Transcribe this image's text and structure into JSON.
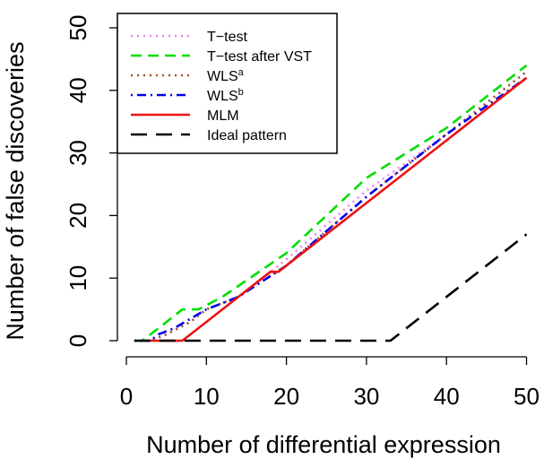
{
  "chart_data": {
    "type": "line",
    "xlabel": "Number of differential expression",
    "ylabel": "Number of false discoveries",
    "xlim": [
      0,
      50
    ],
    "ylim": [
      0,
      50
    ],
    "xticks": [
      0,
      10,
      20,
      30,
      40,
      50
    ],
    "yticks": [
      0,
      10,
      20,
      30,
      40,
      50
    ],
    "grid": false,
    "legend_position": "top-left",
    "series": [
      {
        "name": "T−test",
        "color": "#ee82ee",
        "dash": "dotted",
        "x": [
          1,
          3,
          5,
          8,
          10,
          14,
          20,
          30,
          40,
          50
        ],
        "y": [
          0,
          0,
          1,
          3,
          5,
          7,
          13,
          24,
          33,
          43
        ]
      },
      {
        "name": "T−test after VST",
        "color": "#00dd00",
        "dash": "dashed",
        "x": [
          1,
          2,
          5,
          7,
          9,
          12,
          20,
          30,
          40,
          50
        ],
        "y": [
          0,
          0,
          3,
          5,
          5,
          7,
          14,
          26,
          34,
          44
        ]
      },
      {
        "name": "WLS",
        "sup": "a",
        "color": "#a0522d",
        "dash": "dotted",
        "x": [
          1,
          3,
          5,
          8,
          10,
          14,
          20,
          30,
          40,
          50
        ],
        "y": [
          0,
          0,
          1,
          3,
          5,
          7,
          12,
          23,
          33,
          43
        ]
      },
      {
        "name": "WLS",
        "sup": "b",
        "color": "#0000ee",
        "dash": "dotdash",
        "x": [
          1,
          3,
          4,
          6,
          10,
          14,
          20,
          30,
          40,
          50
        ],
        "y": [
          0,
          0,
          1,
          2,
          5,
          7,
          12,
          23,
          33,
          42
        ]
      },
      {
        "name": "MLM",
        "color": "#ee1111",
        "dash": "solid",
        "x": [
          3,
          7,
          18,
          19,
          20,
          30,
          40,
          50
        ],
        "y": [
          0,
          0,
          11,
          11,
          12,
          22,
          32,
          42
        ]
      },
      {
        "name": "Ideal pattern",
        "color": "#000000",
        "dash": "longdash",
        "x": [
          1,
          33,
          50
        ],
        "y": [
          0,
          0,
          17
        ]
      }
    ]
  }
}
